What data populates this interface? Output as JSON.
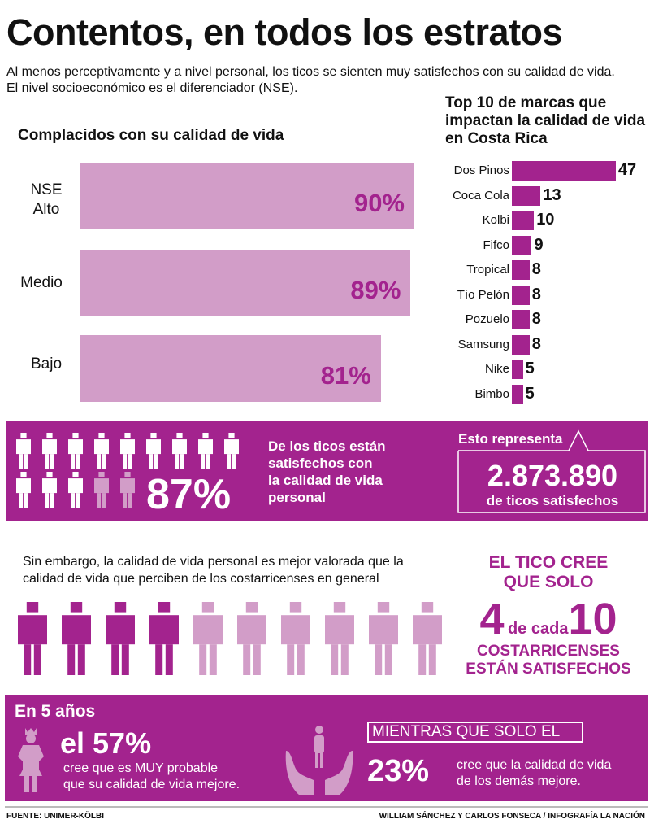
{
  "title": "Contentos, en todos los estratos",
  "subtitle": [
    "Al menos perceptivamente y a nivel personal, los ticos se sienten muy satisfechos con su calidad de vida.",
    "El nivel socioeconómico es el diferenciador (NSE)."
  ],
  "colors": {
    "primary": "#a3238e",
    "light": "#d29dc8"
  },
  "chart_data": [
    {
      "type": "bar",
      "orientation": "horizontal",
      "title": "Complacidos con su calidad de vida",
      "categories": [
        "NSE Alto",
        "Medio",
        "Bajo"
      ],
      "values": [
        90,
        89,
        81
      ],
      "labels": [
        "90%",
        "89%",
        "81%"
      ],
      "unit": "%"
    },
    {
      "type": "bar",
      "orientation": "horizontal",
      "title": "Top 10 de marcas que impactan la calidad de vida en Costa Rica",
      "categories": [
        "Dos Pinos",
        "Coca Cola",
        "Kolbi",
        "Fifco",
        "Tropical",
        "Tío Pelón",
        "Pozuelo",
        "Samsung",
        "Nike",
        "Bimbo"
      ],
      "values": [
        47,
        13,
        10,
        9,
        8,
        8,
        8,
        8,
        5,
        5
      ]
    }
  ],
  "left_labels": [
    "NSE",
    "Alto",
    "Medio",
    "Bajo"
  ],
  "band1": {
    "percent": "87%",
    "satisfied_fraction": 0.87,
    "text": [
      "De los ticos están",
      "satisfechos con",
      "la calidad de vida",
      "personal"
    ],
    "callout_label": "Esto representa",
    "number": "2.873.890",
    "number_caption": "de ticos satisfechos"
  },
  "section2": {
    "text": [
      "Sin embargo, la calidad de vida personal es mejor valorada que la",
      "calidad de vida que perciben de los costarricenses en general"
    ],
    "satisfied_of_ten": 4,
    "right": {
      "line1": "EL TICO CREE",
      "line2": "QUE SOLO",
      "n1": "4",
      "mid": "de cada",
      "n2": "10",
      "line3": "COSTARRICENSES",
      "line4": "ESTÁN SATISFECHOS"
    }
  },
  "band3": {
    "heading": "En 5 años",
    "big": "el 57%",
    "text1": "cree que es MUY probable",
    "text2": "que su calidad de vida mejore.",
    "box": "MIENTRAS QUE SOLO EL",
    "pct": "23%",
    "text3": "cree que la calidad de vida",
    "text4": "de los demás mejore."
  },
  "footer": {
    "source": "FUENTE: UNIMER-KÖLBI",
    "credit": "WILLIAM SÁNCHEZ Y CARLOS FONSECA / INFOGRAFÍA LA NACIÓN"
  }
}
